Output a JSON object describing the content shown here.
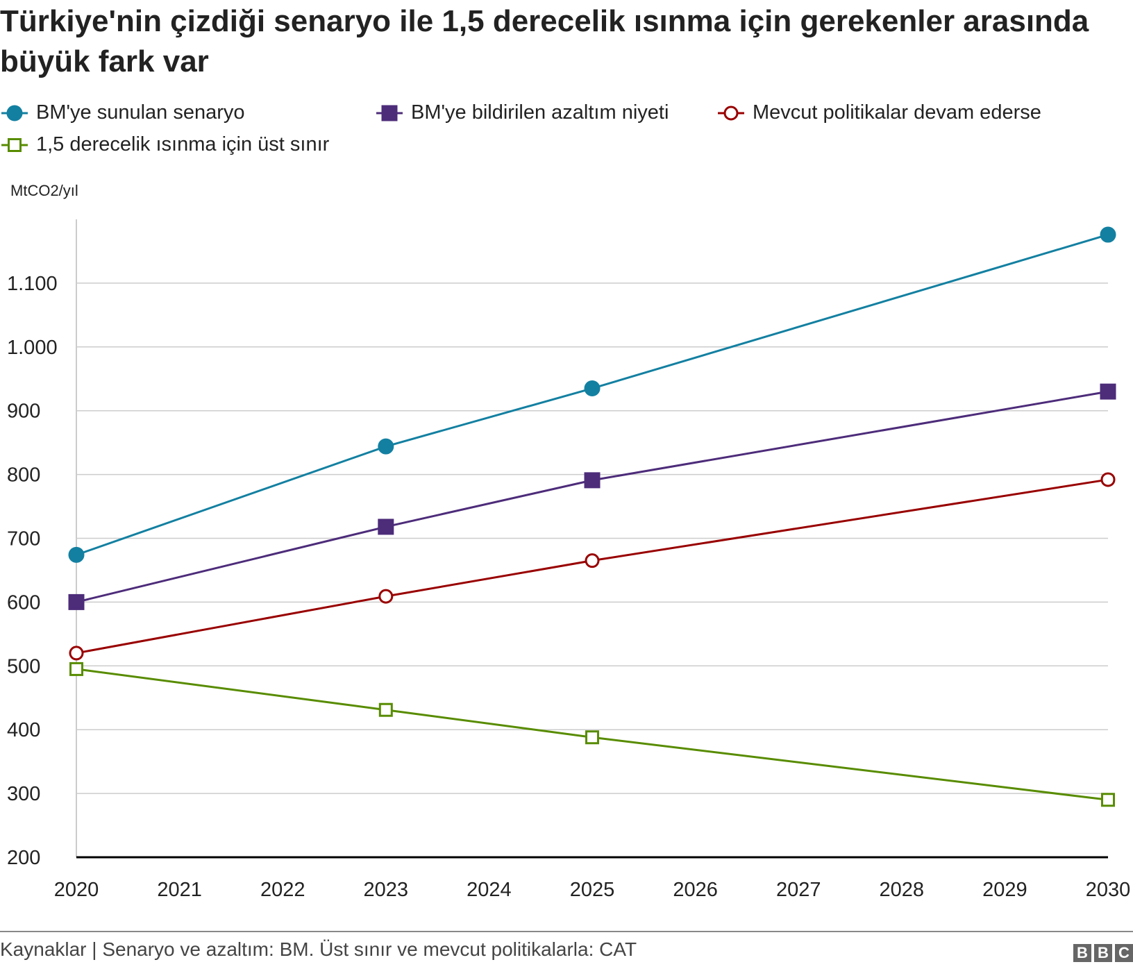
{
  "chart_data": {
    "type": "line",
    "title": "Türkiye'nin çizdiği senaryo ile 1,5 derecelik ısınma için gerekenler arasında büyük fark var",
    "ylabel": "MtCO2/yıl",
    "xlabel": "",
    "x_ticks": [
      "2020",
      "2021",
      "2022",
      "2023",
      "2024",
      "2025",
      "2026",
      "2027",
      "2028",
      "2029",
      "2030"
    ],
    "y_ticks": [
      {
        "v": 200,
        "label": "200"
      },
      {
        "v": 300,
        "label": "300"
      },
      {
        "v": 400,
        "label": "400"
      },
      {
        "v": 500,
        "label": "500"
      },
      {
        "v": 600,
        "label": "600"
      },
      {
        "v": 700,
        "label": "700"
      },
      {
        "v": 800,
        "label": "800"
      },
      {
        "v": 900,
        "label": "900"
      },
      {
        "v": 1000,
        "label": "1.000"
      },
      {
        "v": 1100,
        "label": "1.100"
      }
    ],
    "xlim": [
      2020,
      2030
    ],
    "ylim": [
      200,
      1200
    ],
    "grid": true,
    "legend_position": "top",
    "series": [
      {
        "name": "BM'ye sunulan senaryo",
        "color": "#1380A1",
        "marker": "circle-filled",
        "x": [
          2020,
          2023,
          2025,
          2030
        ],
        "y": [
          674,
          844,
          935,
          1176
        ]
      },
      {
        "name": "BM'ye bildirilen azaltım niyeti",
        "color": "#4D2C7A",
        "marker": "square-filled",
        "x": [
          2020,
          2023,
          2025,
          2030
        ],
        "y": [
          600,
          718,
          791,
          930
        ]
      },
      {
        "name": "Mevcut politikalar devam ederse",
        "color": "#990000",
        "marker": "circle-open",
        "x": [
          2020,
          2023,
          2025,
          2030
        ],
        "y": [
          520,
          609,
          665,
          792
        ]
      },
      {
        "name": "1,5 derecelik ısınma için üst sınır",
        "color": "#588C00",
        "marker": "square-open",
        "x": [
          2020,
          2023,
          2025,
          2030
        ],
        "y": [
          495,
          431,
          388,
          290
        ]
      }
    ]
  },
  "footer": {
    "source": "Kaynaklar | Senaryo ve azaltım: BM. Üst sınır ve mevcut politikalarla: CAT",
    "logo": [
      "B",
      "B",
      "C"
    ]
  }
}
